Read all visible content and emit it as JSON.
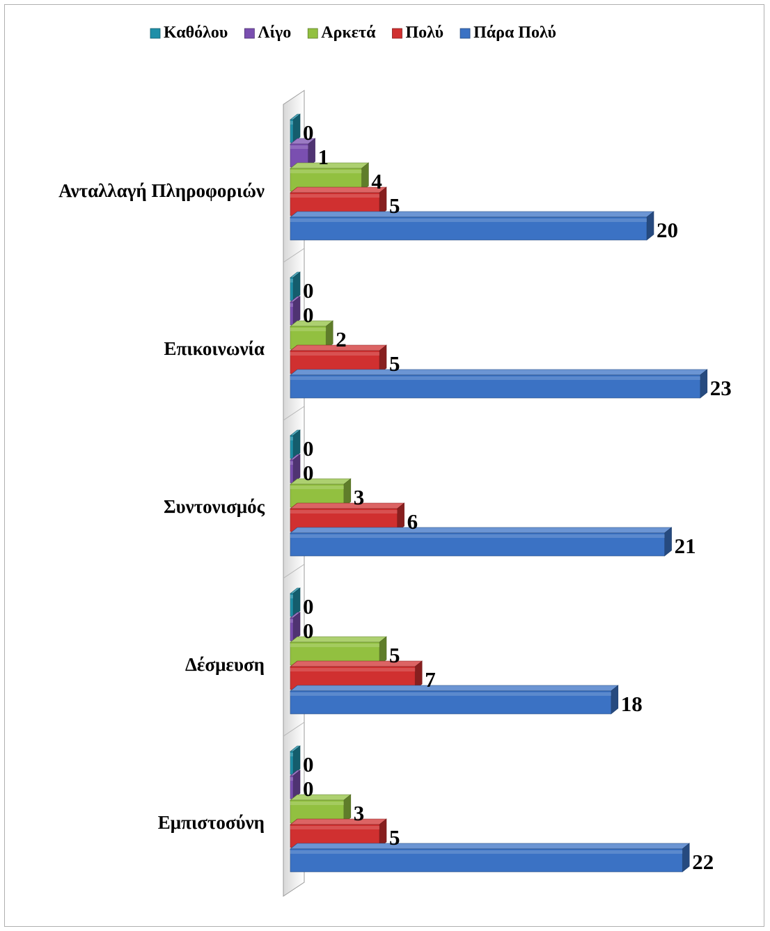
{
  "chart_data": {
    "type": "bar",
    "orientation": "horizontal",
    "style": "3d",
    "title": "",
    "xlabel": "",
    "ylabel": "",
    "xlim": [
      0,
      25
    ],
    "grid": false,
    "legend_position": "top",
    "categories": [
      "Ανταλλαγή Πληροφοριών",
      "Επικοινωνία",
      "Συντονισμός",
      "Δέσμευση",
      "Εμπιστοσύνη"
    ],
    "series": [
      {
        "name": "Καθόλου",
        "color": "#1f8fa8",
        "values": [
          0,
          0,
          0,
          0,
          0
        ]
      },
      {
        "name": "Λίγο",
        "color": "#7a4fb0",
        "values": [
          1,
          0,
          0,
          0,
          0
        ]
      },
      {
        "name": "Αρκετά",
        "color": "#92c040",
        "values": [
          4,
          2,
          3,
          5,
          3
        ]
      },
      {
        "name": "Πολύ",
        "color": "#d03030",
        "values": [
          5,
          5,
          6,
          7,
          5
        ]
      },
      {
        "name": "Πάρα Πολύ",
        "color": "#3b72c4",
        "values": [
          20,
          23,
          21,
          18,
          22
        ]
      }
    ]
  }
}
